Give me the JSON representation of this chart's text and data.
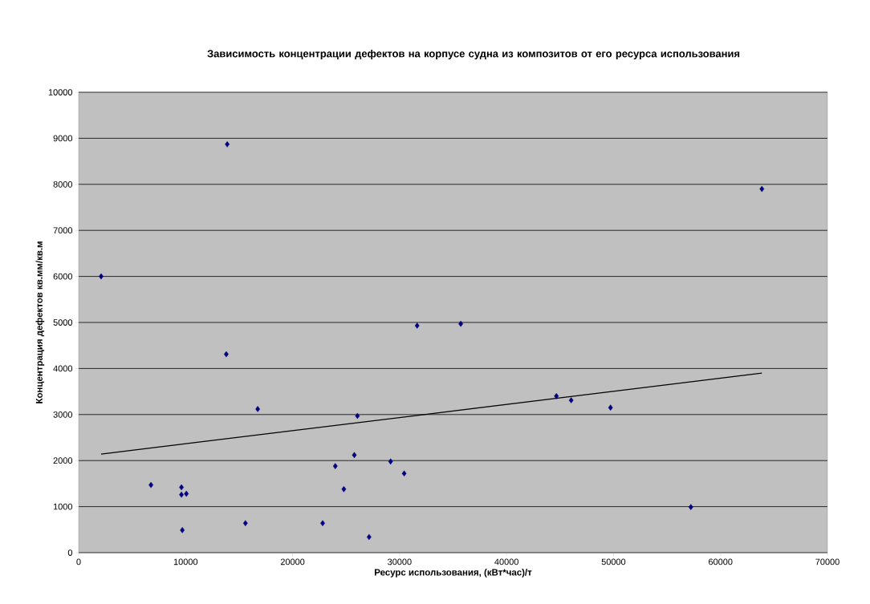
{
  "chart_data": {
    "type": "scatter",
    "title": "Зависимость концентрации дефектов на корпусе судна из композитов от его ресурса использования",
    "xlabel": "Ресурс использования, (кВт*час)/т",
    "ylabel": "Концентрация дефектов кв.мм/кв.м",
    "xlim": [
      0,
      70000
    ],
    "ylim": [
      0,
      10000
    ],
    "xticks": [
      0,
      10000,
      20000,
      30000,
      40000,
      50000,
      60000,
      70000
    ],
    "yticks": [
      0,
      1000,
      2000,
      3000,
      4000,
      5000,
      6000,
      7000,
      8000,
      9000,
      10000
    ],
    "grid": "y",
    "legend": false,
    "series": [
      {
        "marker": "diamond",
        "color": "#000080",
        "x": [
          2100,
          6760,
          9610,
          9610,
          10070,
          9690,
          13890,
          13800,
          15590,
          16740,
          22810,
          23990,
          24790,
          25770,
          26060,
          27150,
          29160,
          30430,
          31640,
          35720,
          44660,
          46040,
          49720,
          57230,
          63870
        ],
        "values": [
          6000,
          1470,
          1420,
          1260,
          1280,
          490,
          8870,
          4310,
          640,
          3120,
          640,
          1880,
          1380,
          2120,
          2970,
          340,
          1980,
          1720,
          4930,
          4970,
          3400,
          3310,
          3150,
          990,
          7900
        ]
      },
      {
        "type": "line",
        "marker": "none",
        "color": "#000000",
        "x": [
          2100,
          63870
        ],
        "values": [
          2140,
          3900
        ]
      }
    ]
  }
}
